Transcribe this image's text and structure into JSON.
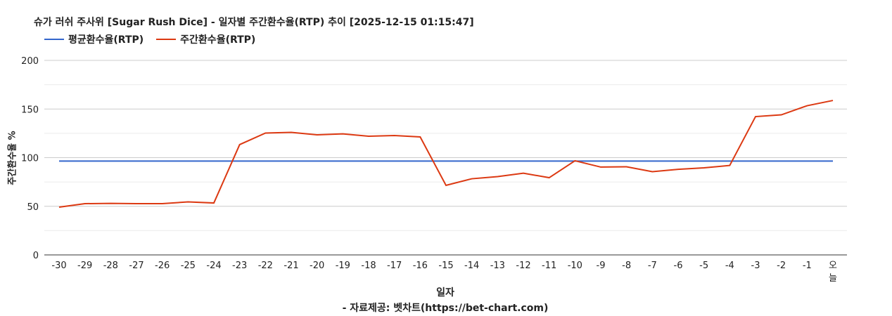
{
  "chart_data": {
    "type": "line",
    "title": "슈가 러쉬 주사위 [Sugar Rush Dice] - 일자별 주간환수율(RTP) 추이 [2025-12-15 01:15:47]",
    "xlabel": "일자",
    "ylabel": "주간환수율 %",
    "credit": "- 자료제공: 벳차트(https://bet-chart.com)",
    "ylim": [
      0,
      200
    ],
    "yticks": [
      "0",
      "50",
      "100",
      "150",
      "200"
    ],
    "grid": true,
    "legend": "top-left",
    "categories": [
      "-30",
      "-29",
      "-28",
      "-27",
      "-26",
      "-25",
      "-24",
      "-23",
      "-22",
      "-21",
      "-20",
      "-19",
      "-18",
      "-17",
      "-16",
      "-15",
      "-14",
      "-13",
      "-12",
      "-11",
      "-10",
      "-9",
      "-8",
      "-7",
      "-6",
      "-5",
      "-4",
      "-3",
      "-2",
      "-1",
      "오늘"
    ],
    "series": [
      {
        "name": "평균환수율(RTP)",
        "color": "#3366cc",
        "values": [
          96.5,
          96.5,
          96.5,
          96.5,
          96.5,
          96.5,
          96.5,
          96.5,
          96.5,
          96.5,
          96.5,
          96.5,
          96.5,
          96.5,
          96.5,
          96.5,
          96.5,
          96.5,
          96.5,
          96.5,
          96.5,
          96.5,
          96.5,
          96.5,
          96.5,
          96.5,
          96.5,
          96.5,
          96.5,
          96.5,
          96.5
        ]
      },
      {
        "name": "주간환수율(RTP)",
        "color": "#dc3912",
        "values": [
          49.1,
          52.7,
          53.0,
          52.7,
          52.7,
          54.5,
          53.4,
          113.4,
          125.3,
          126.0,
          123.5,
          124.5,
          122.0,
          122.7,
          121.3,
          71.5,
          78.3,
          80.5,
          84.0,
          79.4,
          96.8,
          90.3,
          90.6,
          85.6,
          88.0,
          89.5,
          92.0,
          142.2,
          144.0,
          153.4,
          158.8
        ]
      }
    ]
  }
}
